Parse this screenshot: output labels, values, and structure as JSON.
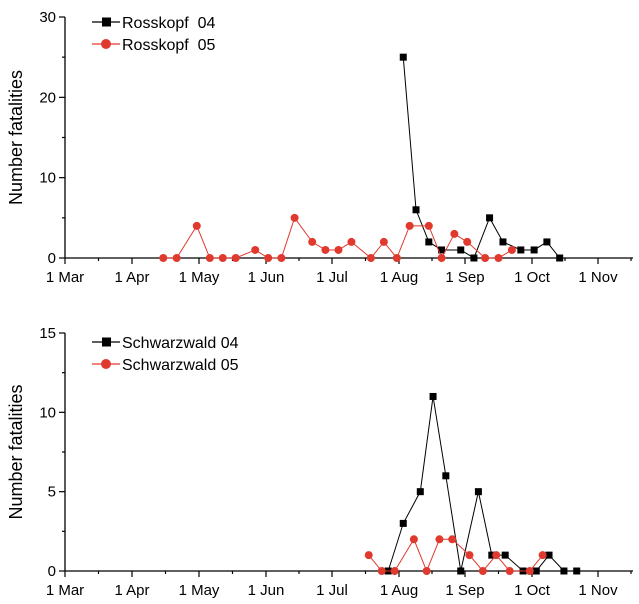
{
  "chart_data": [
    {
      "type": "line",
      "title": "",
      "ylabel": "Number fatalities",
      "xlabel": "",
      "x_ticks": [
        "1 Mar",
        "1 Apr",
        "1 May",
        "1 Jun",
        "1 Jul",
        "1 Aug",
        "1 Sep",
        "1 Oct",
        "1 Nov"
      ],
      "y_ticks": [
        "0",
        "10",
        "20",
        "30"
      ],
      "ylim": [
        0,
        30
      ],
      "xlim_days_labels": [
        "1 Mar",
        "1 Nov"
      ],
      "legend_position": "top-left",
      "grid": false,
      "series": [
        {
          "name": "Rosskopf  04",
          "color": "#000000",
          "marker": "square",
          "points": [
            {
              "x": "2004-08-03",
              "y": 25
            },
            {
              "x": "2004-08-09",
              "y": 6
            },
            {
              "x": "2004-08-15",
              "y": 2
            },
            {
              "x": "2004-08-21",
              "y": 1
            },
            {
              "x": "2004-08-30",
              "y": 1
            },
            {
              "x": "2004-09-05",
              "y": 0
            },
            {
              "x": "2004-09-12",
              "y": 5
            },
            {
              "x": "2004-09-18",
              "y": 2
            },
            {
              "x": "2004-09-26",
              "y": 1
            },
            {
              "x": "2004-10-02",
              "y": 1
            },
            {
              "x": "2004-10-08",
              "y": 2
            },
            {
              "x": "2004-10-14",
              "y": 0
            }
          ]
        },
        {
          "name": "Rosskopf  05",
          "color": "#e03a2f",
          "marker": "circle",
          "points": [
            {
              "x": "2005-04-15",
              "y": 0
            },
            {
              "x": "2005-04-21",
              "y": 0
            },
            {
              "x": "2005-04-30",
              "y": 4
            },
            {
              "x": "2005-05-06",
              "y": 0
            },
            {
              "x": "2005-05-12",
              "y": 0
            },
            {
              "x": "2005-05-18",
              "y": 0
            },
            {
              "x": "2005-05-27",
              "y": 1
            },
            {
              "x": "2005-06-02",
              "y": 0
            },
            {
              "x": "2005-06-08",
              "y": 0
            },
            {
              "x": "2005-06-14",
              "y": 5
            },
            {
              "x": "2005-06-22",
              "y": 2
            },
            {
              "x": "2005-06-28",
              "y": 1
            },
            {
              "x": "2005-07-04",
              "y": 1
            },
            {
              "x": "2005-07-10",
              "y": 2
            },
            {
              "x": "2005-07-19",
              "y": 0
            },
            {
              "x": "2005-07-25",
              "y": 2
            },
            {
              "x": "2005-07-31",
              "y": 0
            },
            {
              "x": "2005-08-06",
              "y": 4
            },
            {
              "x": "2005-08-15",
              "y": 4
            },
            {
              "x": "2005-08-21",
              "y": 0
            },
            {
              "x": "2005-08-27",
              "y": 3
            },
            {
              "x": "2005-09-02",
              "y": 2
            },
            {
              "x": "2005-09-10",
              "y": 0
            },
            {
              "x": "2005-09-16",
              "y": 0
            },
            {
              "x": "2005-09-22",
              "y": 1
            }
          ]
        }
      ]
    },
    {
      "type": "line",
      "title": "",
      "ylabel": "Number fatalities",
      "xlabel": "",
      "x_ticks": [
        "1 Mar",
        "1 Apr",
        "1 May",
        "1 Jun",
        "1 Jul",
        "1 Aug",
        "1 Sep",
        "1 Oct",
        "1 Nov"
      ],
      "y_ticks": [
        "0",
        "5",
        "10",
        "15"
      ],
      "ylim": [
        0,
        15
      ],
      "legend_position": "top-left",
      "grid": false,
      "series": [
        {
          "name": "Schwarzwald 04",
          "color": "#000000",
          "marker": "square",
          "points": [
            {
              "x": "2004-07-27",
              "y": 0
            },
            {
              "x": "2004-08-03",
              "y": 3
            },
            {
              "x": "2004-08-11",
              "y": 5
            },
            {
              "x": "2004-08-17",
              "y": 11
            },
            {
              "x": "2004-08-23",
              "y": 6
            },
            {
              "x": "2004-08-30",
              "y": 0
            },
            {
              "x": "2004-09-07",
              "y": 5
            },
            {
              "x": "2004-09-13",
              "y": 1
            },
            {
              "x": "2004-09-19",
              "y": 1
            },
            {
              "x": "2004-09-27",
              "y": 0
            },
            {
              "x": "2004-10-03",
              "y": 0
            },
            {
              "x": "2004-10-09",
              "y": 1
            },
            {
              "x": "2004-10-16",
              "y": 0
            },
            {
              "x": "2004-10-22",
              "y": 0
            }
          ]
        },
        {
          "name": "Schwarzwald 05",
          "color": "#e03a2f",
          "marker": "circle",
          "points": [
            {
              "x": "2005-07-18",
              "y": 1
            },
            {
              "x": "2005-07-24",
              "y": 0
            },
            {
              "x": "2005-07-30",
              "y": 0
            },
            {
              "x": "2005-08-08",
              "y": 2
            },
            {
              "x": "2005-08-14",
              "y": 0
            },
            {
              "x": "2005-08-20",
              "y": 2
            },
            {
              "x": "2005-08-26",
              "y": 2
            },
            {
              "x": "2005-09-03",
              "y": 1
            },
            {
              "x": "2005-09-09",
              "y": 0
            },
            {
              "x": "2005-09-15",
              "y": 1
            },
            {
              "x": "2005-09-21",
              "y": 0
            },
            {
              "x": "2005-09-30",
              "y": 0
            },
            {
              "x": "2005-10-06",
              "y": 1
            }
          ]
        }
      ]
    }
  ]
}
